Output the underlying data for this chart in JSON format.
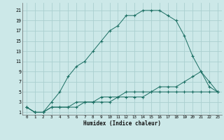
{
  "xlabel": "Humidex (Indice chaleur)",
  "bg_color": "#cce8e8",
  "grid_color": "#aacfcf",
  "line_color": "#1a6e62",
  "xlim": [
    -0.5,
    23.5
  ],
  "ylim": [
    0.5,
    22.5
  ],
  "xticks": [
    0,
    1,
    2,
    3,
    4,
    5,
    6,
    7,
    8,
    9,
    10,
    11,
    12,
    13,
    14,
    15,
    16,
    17,
    18,
    19,
    20,
    21,
    22,
    23
  ],
  "yticks": [
    1,
    3,
    5,
    7,
    9,
    11,
    13,
    15,
    17,
    19,
    21
  ],
  "line1_x": [
    0,
    1,
    2,
    3,
    4,
    5,
    6,
    7,
    8,
    9,
    10,
    11,
    12,
    13,
    14,
    15,
    16,
    17,
    18,
    19,
    20,
    21,
    22,
    23
  ],
  "line1_y": [
    2,
    1,
    1,
    3,
    5,
    8,
    10,
    11,
    13,
    15,
    17,
    18,
    20,
    20,
    21,
    21,
    21,
    20,
    19,
    16,
    12,
    9,
    6,
    5
  ],
  "line2_x": [
    0,
    1,
    2,
    3,
    4,
    5,
    6,
    7,
    8,
    9,
    10,
    11,
    12,
    13,
    14,
    15,
    16,
    17,
    18,
    19,
    20,
    21,
    22,
    23
  ],
  "line2_y": [
    2,
    1,
    1,
    2,
    2,
    2,
    3,
    3,
    3,
    4,
    4,
    4,
    5,
    5,
    5,
    5,
    6,
    6,
    6,
    7,
    8,
    9,
    7,
    5
  ],
  "line3_x": [
    0,
    1,
    2,
    3,
    4,
    5,
    6,
    7,
    8,
    9,
    10,
    11,
    12,
    13,
    14,
    15,
    16,
    17,
    18,
    19,
    20,
    21,
    22,
    23
  ],
  "line3_y": [
    2,
    1,
    1,
    2,
    2,
    2,
    2,
    3,
    3,
    3,
    3,
    4,
    4,
    4,
    4,
    5,
    5,
    5,
    5,
    5,
    5,
    5,
    5,
    5
  ]
}
